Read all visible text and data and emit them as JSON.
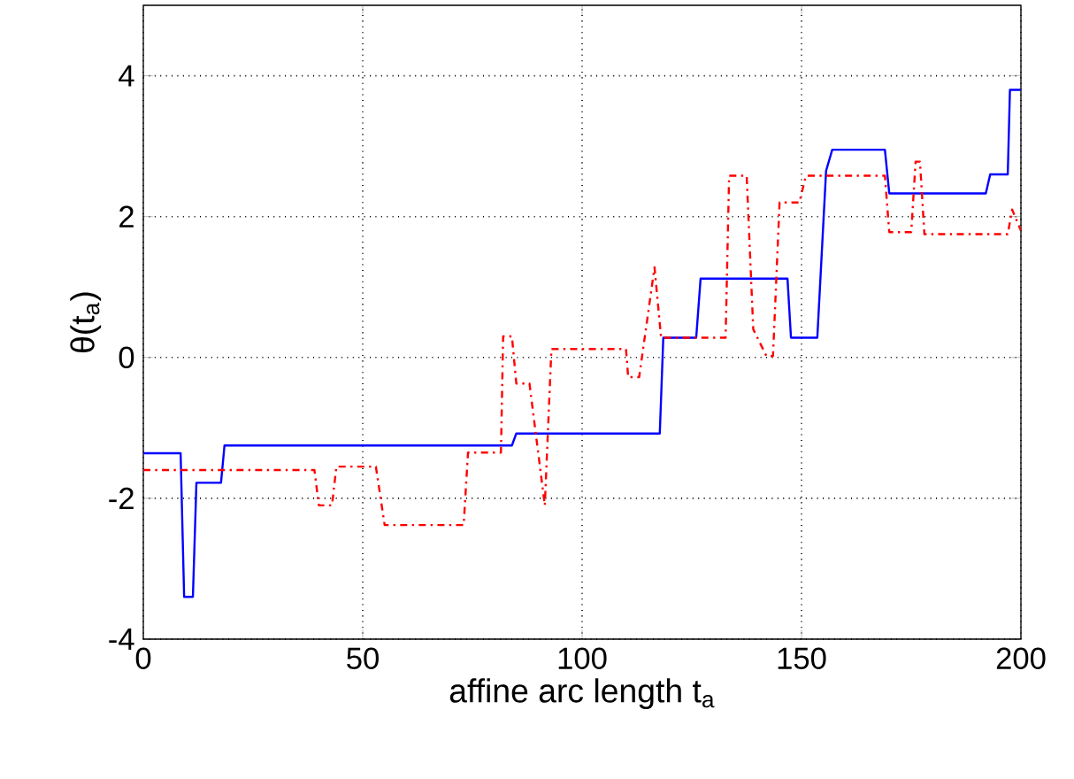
{
  "chart_data": {
    "type": "line",
    "xlabel": "affine arc length t$_{a}$",
    "ylabel": "θ(t$_{a}$)",
    "xlim": [
      0,
      200
    ],
    "ylim": [
      -4,
      5
    ],
    "xticks": [
      0,
      50,
      100,
      150,
      200
    ],
    "yticks": [
      -4,
      -2,
      0,
      2,
      4
    ],
    "grid": true,
    "series": [
      {
        "color": "#0000ff",
        "line_style": "solid",
        "x": [
          0,
          8.5,
          9.3,
          11.3,
          12.1,
          17.7,
          18.5,
          84,
          85,
          117.7,
          118.5,
          126,
          127,
          146.8,
          147.6,
          153.6,
          155.6,
          157,
          169,
          170,
          192,
          193,
          197,
          197.5,
          200
        ],
        "values": [
          -1.36,
          -1.36,
          -3.4,
          -3.4,
          -1.78,
          -1.78,
          -1.25,
          -1.25,
          -1.08,
          -1.08,
          0.28,
          0.28,
          1.12,
          1.12,
          0.28,
          0.28,
          2.65,
          2.95,
          2.95,
          2.33,
          2.33,
          2.6,
          2.6,
          3.8,
          3.8
        ]
      },
      {
        "color": "#ff0000",
        "line_style": "dashed",
        "x": [
          0,
          39,
          40,
          43,
          44,
          53,
          55,
          73,
          74,
          81.5,
          82,
          84,
          85,
          88,
          91.5,
          93,
          110,
          110.5,
          113,
          116.5,
          118,
          132.7,
          133.5,
          137.5,
          139,
          142,
          143.5,
          145,
          149.5,
          151,
          169,
          170,
          175,
          176,
          177,
          178,
          195,
          197,
          198,
          200
        ],
        "values": [
          -1.6,
          -1.6,
          -2.1,
          -2.1,
          -1.55,
          -1.55,
          -2.38,
          -2.38,
          -1.35,
          -1.35,
          0.3,
          0.3,
          -0.37,
          -0.37,
          -2.1,
          0.12,
          0.12,
          -0.28,
          -0.28,
          1.28,
          0.28,
          0.28,
          2.58,
          2.58,
          0.4,
          0.02,
          0.02,
          2.2,
          2.2,
          2.58,
          2.58,
          1.78,
          1.78,
          2.78,
          2.78,
          1.75,
          1.75,
          1.75,
          2.1,
          1.8
        ]
      }
    ]
  }
}
